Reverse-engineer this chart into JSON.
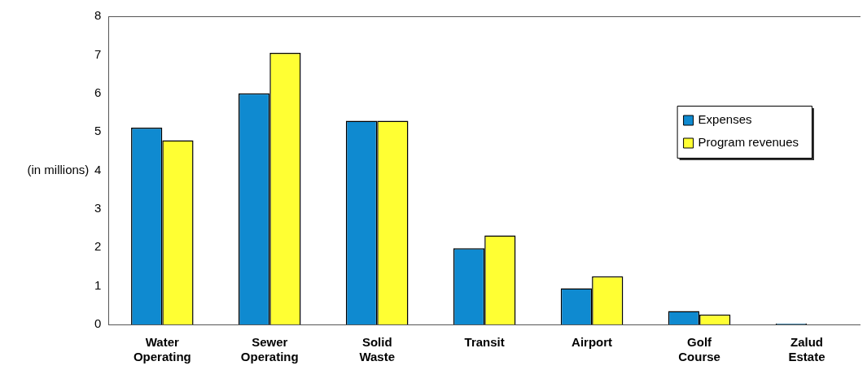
{
  "chart_data": {
    "type": "bar",
    "ylabel": "(in millions)",
    "categories": [
      "Water Operating",
      "Sewer Operating",
      "Solid Waste",
      "Transit",
      "Airport",
      "Golf Course",
      "Zalud Estate"
    ],
    "series": [
      {
        "name": "Expenses",
        "color": "#0f8ad0",
        "values": [
          5.11,
          6.0,
          5.29,
          1.98,
          0.94,
          0.35,
          0.02
        ]
      },
      {
        "name": "Program revenues",
        "color": "#ffff33",
        "values": [
          4.78,
          7.05,
          5.29,
          2.31,
          1.25,
          0.26,
          null
        ]
      }
    ],
    "ylim": [
      0,
      8
    ],
    "yticks": [
      0,
      1,
      2,
      3,
      4,
      5,
      6,
      7,
      8
    ],
    "grid": false,
    "legend": "right"
  }
}
